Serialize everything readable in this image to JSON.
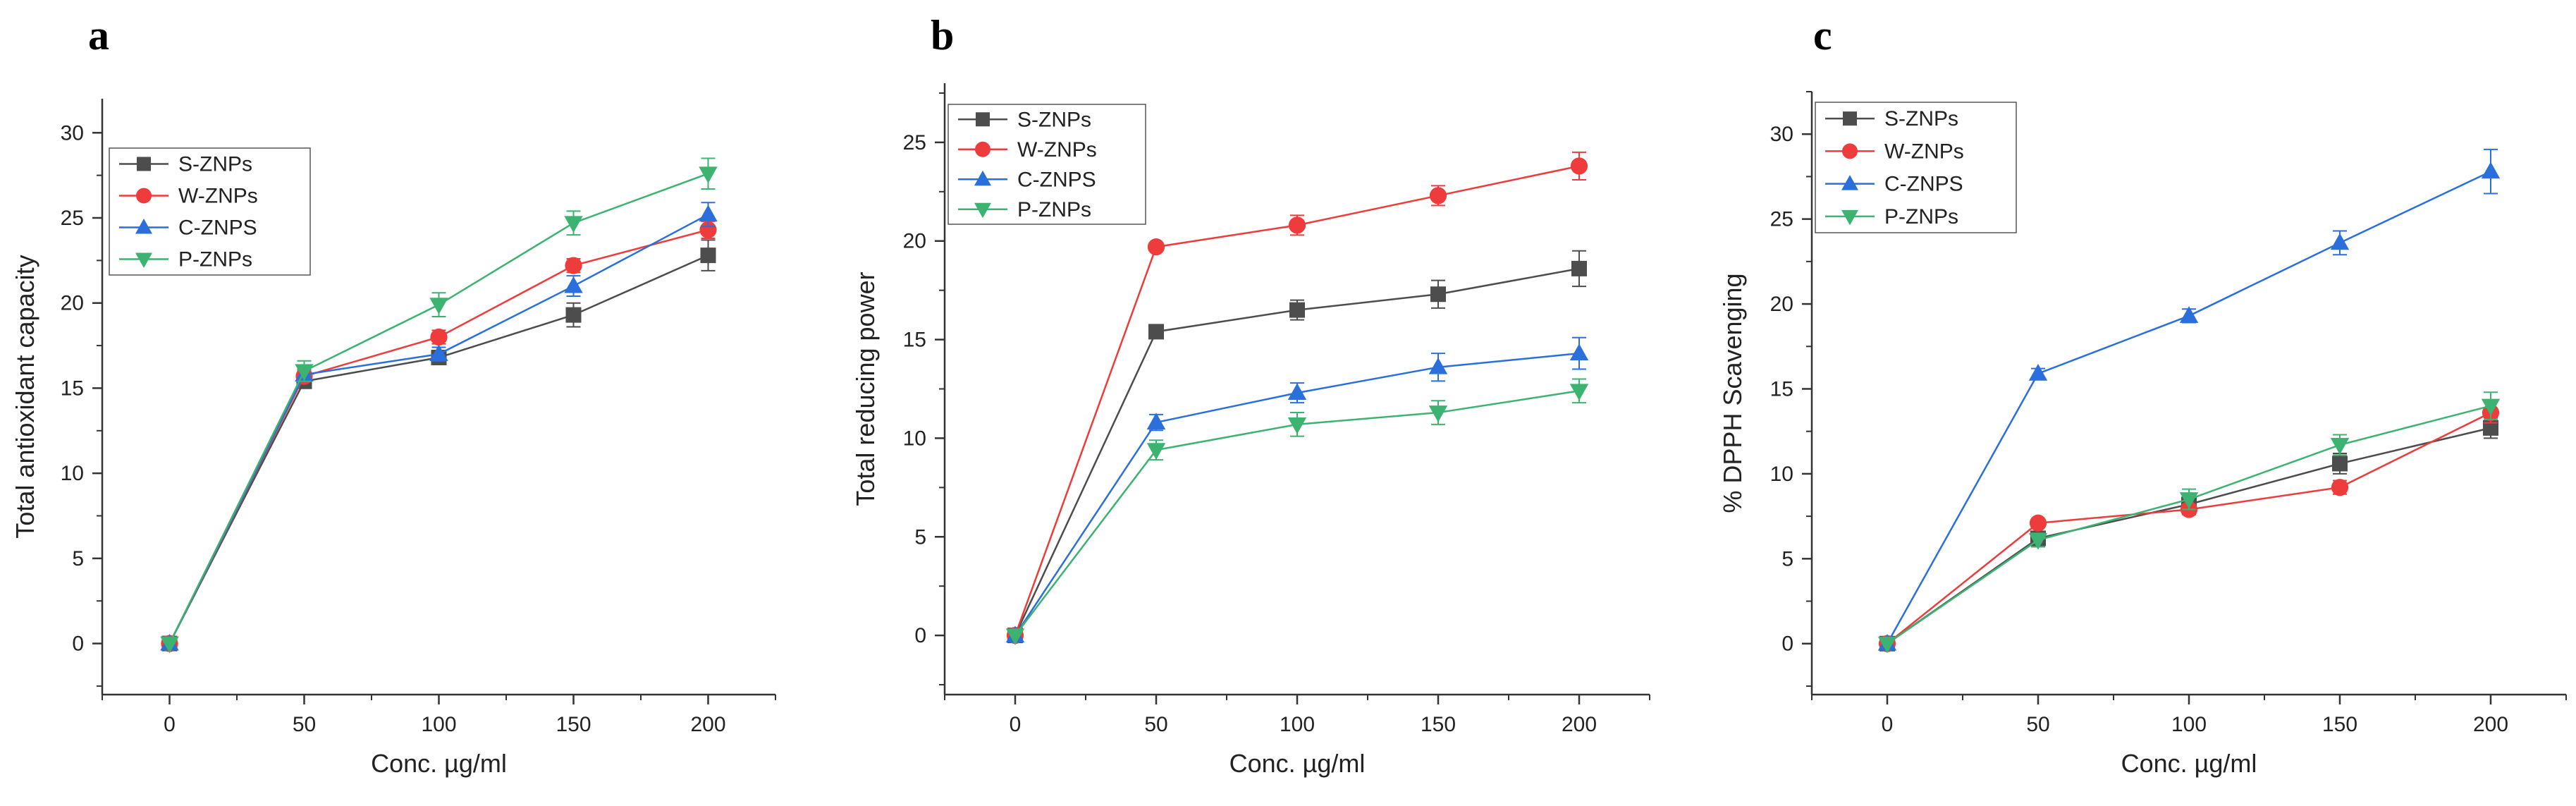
{
  "chart_data": [
    {
      "panel": "a",
      "type": "line",
      "xlabel": "Conc. µg/ml",
      "ylabel": "Total antioxidant capacity",
      "x": [
        0,
        50,
        100,
        150,
        200
      ],
      "xlim": [
        -25,
        225
      ],
      "ylim": [
        -3,
        32
      ],
      "xticks": [
        0,
        50,
        100,
        150,
        200
      ],
      "yticks": [
        0,
        5,
        10,
        15,
        20,
        25,
        30
      ],
      "legend": [
        "S-ZNPs",
        "W-ZNPs",
        "C-ZNPS",
        "P-ZNPs"
      ],
      "series": [
        {
          "name": "S-ZNPs",
          "color": "#4d4d4d",
          "marker": "square",
          "values": [
            0,
            15.4,
            16.8,
            19.3,
            22.8
          ],
          "errors": [
            0,
            0.3,
            0.4,
            0.7,
            0.9
          ]
        },
        {
          "name": "W-ZNPs",
          "color": "#ee3b3b",
          "marker": "circle",
          "values": [
            0,
            15.7,
            18.0,
            22.2,
            24.3
          ],
          "errors": [
            0,
            0.3,
            0.4,
            0.4,
            0.5
          ]
        },
        {
          "name": "C-ZNPS",
          "color": "#2a6fdb",
          "marker": "triangle-up",
          "values": [
            0,
            15.8,
            17.0,
            21.0,
            25.2
          ],
          "errors": [
            0,
            0.3,
            0.4,
            0.6,
            0.7
          ]
        },
        {
          "name": "P-ZNPs",
          "color": "#3cb371",
          "marker": "triangle-down",
          "values": [
            0,
            16.0,
            19.9,
            24.7,
            27.6
          ],
          "errors": [
            0,
            0.6,
            0.7,
            0.7,
            0.9
          ]
        }
      ]
    },
    {
      "panel": "b",
      "type": "line",
      "xlabel": "Conc. µg/ml",
      "ylabel": "Total reducing power",
      "x": [
        0,
        50,
        100,
        150,
        200
      ],
      "xlim": [
        -25,
        225
      ],
      "ylim": [
        -3,
        28
      ],
      "xticks": [
        0,
        50,
        100,
        150,
        200
      ],
      "yticks": [
        0,
        5,
        10,
        15,
        20,
        25
      ],
      "legend": [
        "S-ZNPs",
        "W-ZNPs",
        "C-ZNPS",
        "P-ZNPs"
      ],
      "series": [
        {
          "name": "S-ZNPs",
          "color": "#4d4d4d",
          "marker": "square",
          "values": [
            0,
            15.4,
            16.5,
            17.3,
            18.6
          ],
          "errors": [
            0,
            0.3,
            0.5,
            0.7,
            0.9
          ]
        },
        {
          "name": "W-ZNPs",
          "color": "#ee3b3b",
          "marker": "circle",
          "values": [
            0,
            19.7,
            20.8,
            22.3,
            23.8
          ],
          "errors": [
            0,
            0.2,
            0.5,
            0.5,
            0.7
          ]
        },
        {
          "name": "C-ZNPS",
          "color": "#2a6fdb",
          "marker": "triangle-up",
          "values": [
            0,
            10.8,
            12.3,
            13.6,
            14.3
          ],
          "errors": [
            0,
            0.4,
            0.5,
            0.7,
            0.8
          ]
        },
        {
          "name": "P-ZNPs",
          "color": "#3cb371",
          "marker": "triangle-down",
          "values": [
            0,
            9.4,
            10.7,
            11.3,
            12.4
          ],
          "errors": [
            0,
            0.5,
            0.6,
            0.6,
            0.6
          ]
        }
      ]
    },
    {
      "panel": "c",
      "type": "line",
      "xlabel": "Conc. µg/ml",
      "ylabel": "% DPPH Scavenging",
      "x": [
        0,
        50,
        100,
        150,
        200
      ],
      "xlim": [
        -25,
        225
      ],
      "ylim": [
        -3,
        32.5
      ],
      "xticks": [
        0,
        50,
        100,
        150,
        200
      ],
      "yticks": [
        0,
        5,
        10,
        15,
        20,
        25,
        30
      ],
      "legend": [
        "S-ZNPs",
        "W-ZNPs",
        "C-ZNPS",
        "P-ZNPs"
      ],
      "series": [
        {
          "name": "S-ZNPs",
          "color": "#4d4d4d",
          "marker": "square",
          "values": [
            0,
            6.2,
            8.2,
            10.6,
            12.7
          ],
          "errors": [
            0,
            0.3,
            0.4,
            0.6,
            0.6
          ]
        },
        {
          "name": "W-ZNPs",
          "color": "#ee3b3b",
          "marker": "circle",
          "values": [
            0,
            7.1,
            7.9,
            9.2,
            13.6
          ],
          "errors": [
            0,
            0.2,
            0.3,
            0.4,
            0.6
          ]
        },
        {
          "name": "C-ZNPS",
          "color": "#2a6fdb",
          "marker": "triangle-up",
          "values": [
            0,
            15.9,
            19.3,
            23.6,
            27.8
          ],
          "errors": [
            0,
            0.3,
            0.4,
            0.7,
            1.3
          ]
        },
        {
          "name": "P-ZNPs",
          "color": "#3cb371",
          "marker": "triangle-down",
          "values": [
            0,
            6.1,
            8.5,
            11.7,
            14.0
          ],
          "errors": [
            0,
            0.4,
            0.6,
            0.6,
            0.8
          ]
        }
      ]
    }
  ]
}
